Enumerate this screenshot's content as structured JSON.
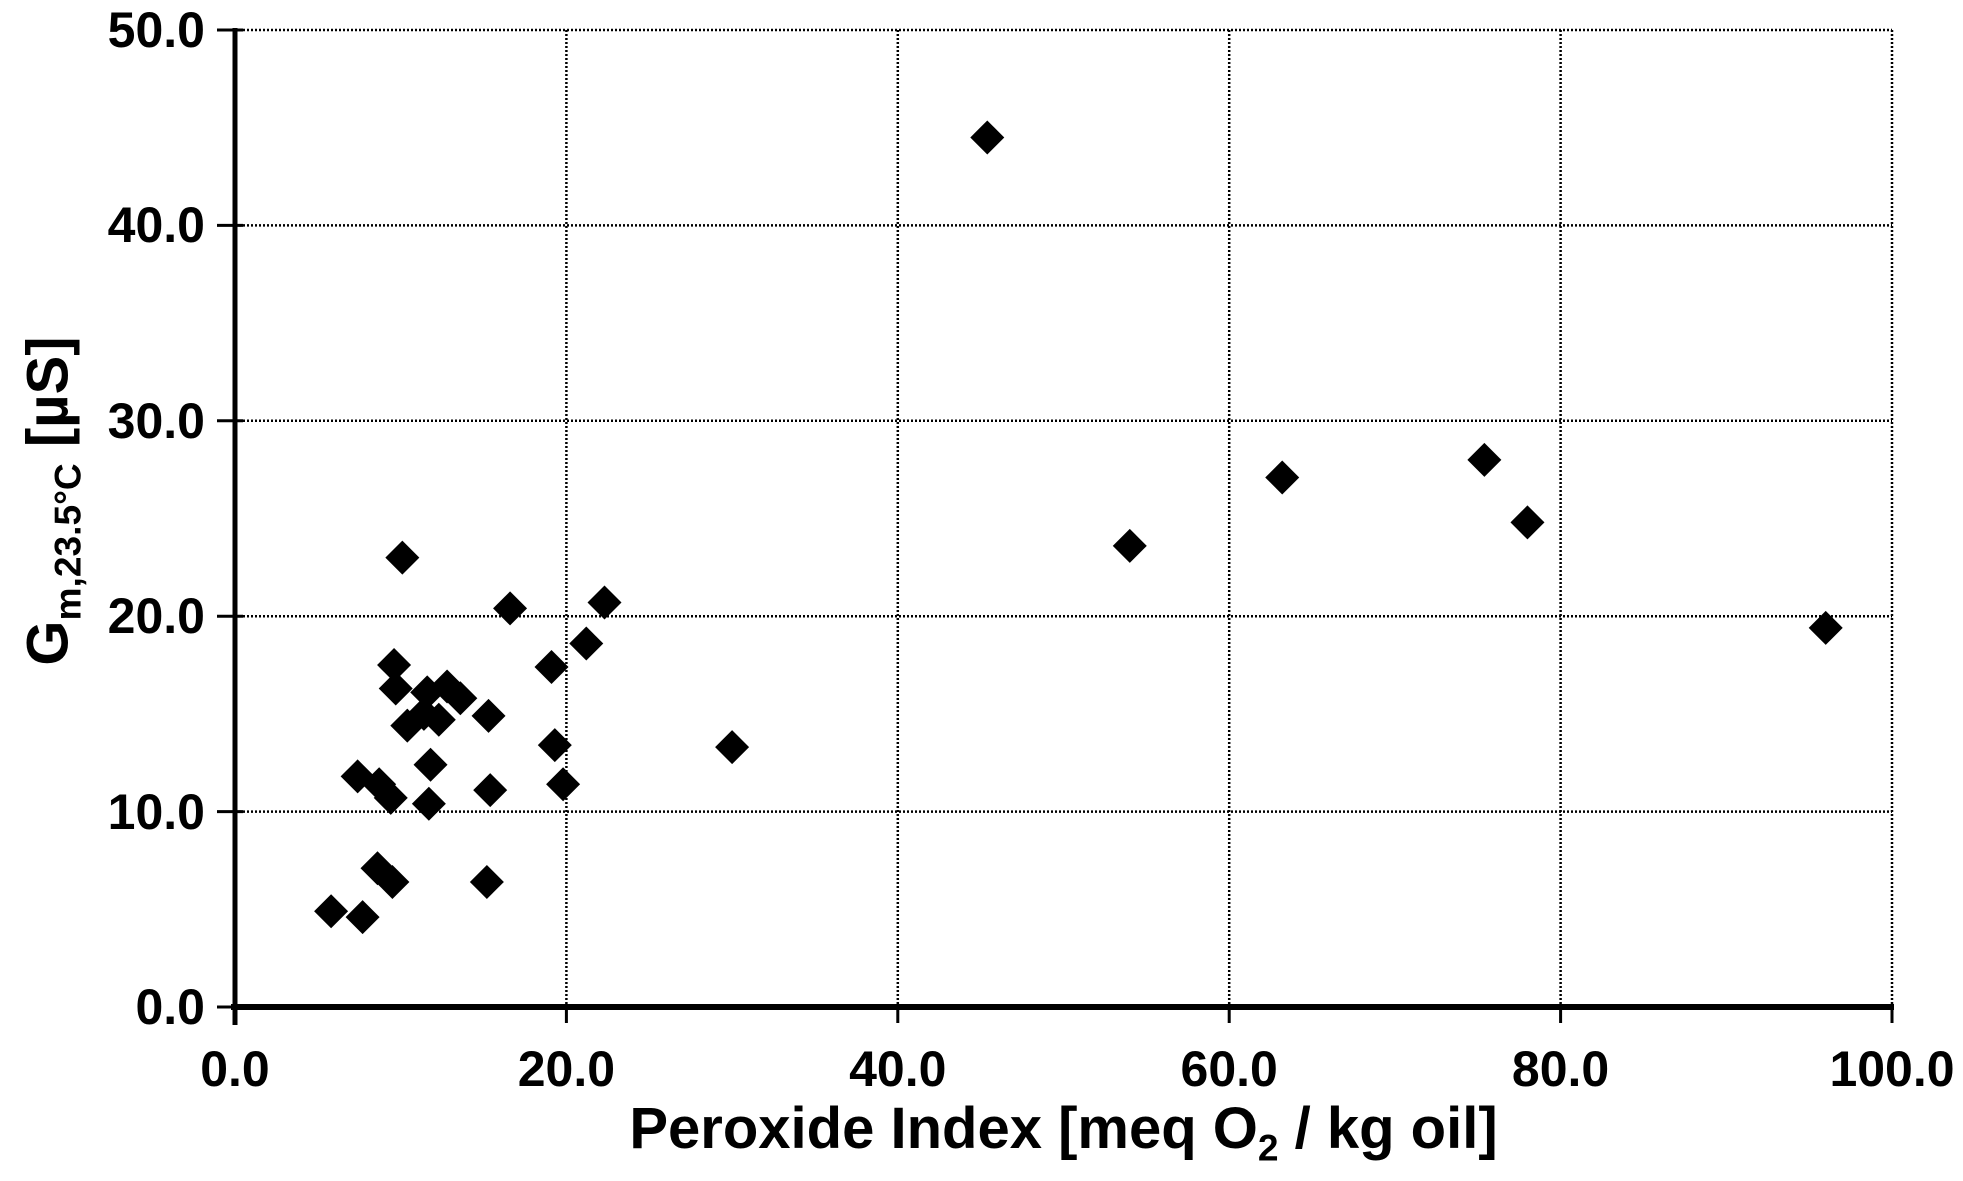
{
  "figure": {
    "background": "#ffffff",
    "ink_color": "#000000"
  },
  "chart_data": {
    "type": "scatter",
    "title": "",
    "xlabel": "Peroxide Index [meq O2 / kg oil]",
    "xlabel_parts": {
      "pre": "Peroxide Index [meq O",
      "sub": "2",
      "post": " / kg oil]"
    },
    "ylabel": "Gm,23.5°C [µS]",
    "ylabel_parts": {
      "pre": "G",
      "sub": "m,23.5°C",
      "post": " [µS]"
    },
    "xlim": [
      0,
      100
    ],
    "ylim": [
      0,
      50
    ],
    "grid": true,
    "legend_position": "none",
    "x_ticks": [
      {
        "value": 0,
        "label": "0.0"
      },
      {
        "value": 20,
        "label": "20.0"
      },
      {
        "value": 40,
        "label": "40.0"
      },
      {
        "value": 60,
        "label": "60.0"
      },
      {
        "value": 80,
        "label": "80.0"
      },
      {
        "value": 100,
        "label": "100.0"
      }
    ],
    "y_ticks": [
      {
        "value": 0,
        "label": "0.0"
      },
      {
        "value": 10,
        "label": "10.0"
      },
      {
        "value": 20,
        "label": "20.0"
      },
      {
        "value": 30,
        "label": "30.0"
      },
      {
        "value": 40,
        "label": "40.0"
      },
      {
        "value": 50,
        "label": "50.0"
      }
    ],
    "x_gridlines": [
      20,
      40,
      60,
      80,
      100
    ],
    "y_gridlines": [
      10,
      20,
      30,
      40,
      50
    ],
    "marker": {
      "shape": "diamond",
      "color": "#000000",
      "size": 34
    },
    "points": [
      [
        45.4,
        44.5
      ],
      [
        54.0,
        23.6
      ],
      [
        63.2,
        27.1
      ],
      [
        75.4,
        28.0
      ],
      [
        78.0,
        24.8
      ],
      [
        96.0,
        19.4
      ],
      [
        30.0,
        13.3
      ],
      [
        10.1,
        23.0
      ],
      [
        16.6,
        20.4
      ],
      [
        22.3,
        20.7
      ],
      [
        21.2,
        18.6
      ],
      [
        19.1,
        17.4
      ],
      [
        9.6,
        17.5
      ],
      [
        9.7,
        16.3
      ],
      [
        11.6,
        16.1
      ],
      [
        12.8,
        16.4
      ],
      [
        13.6,
        15.8
      ],
      [
        10.4,
        14.4
      ],
      [
        11.4,
        15.0
      ],
      [
        12.3,
        14.7
      ],
      [
        15.3,
        14.9
      ],
      [
        19.3,
        13.4
      ],
      [
        7.4,
        11.8
      ],
      [
        8.7,
        11.4
      ],
      [
        9.4,
        10.7
      ],
      [
        11.8,
        12.4
      ],
      [
        11.7,
        10.4
      ],
      [
        15.4,
        11.1
      ],
      [
        19.8,
        11.4
      ],
      [
        8.6,
        7.1
      ],
      [
        9.5,
        6.4
      ],
      [
        5.8,
        4.9
      ],
      [
        7.7,
        4.6
      ],
      [
        15.2,
        6.4
      ]
    ]
  }
}
